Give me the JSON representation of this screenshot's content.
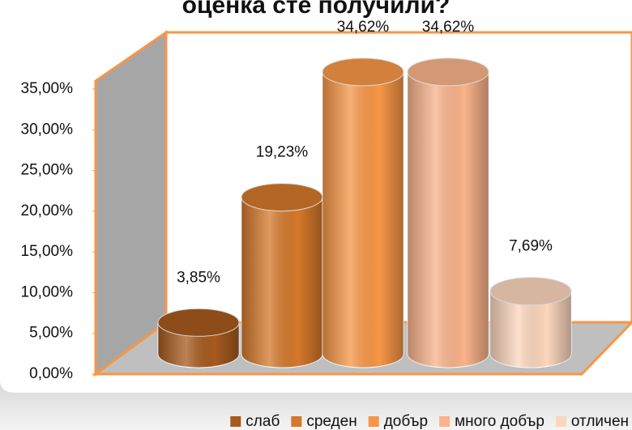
{
  "chart_data": {
    "type": "bar3d",
    "title": "оценка сте получили?",
    "categories": [
      "слаб",
      "среден",
      "добър",
      "много добър",
      "отличен"
    ],
    "values": [
      3.85,
      19.23,
      34.62,
      34.62,
      7.69
    ],
    "value_labels": [
      "3,85%",
      "19,23%",
      "34,62%",
      "34,62%",
      "7,69%"
    ],
    "colors": [
      "#a65a1e",
      "#d4782a",
      "#f79646",
      "#f9b38a",
      "#fcd6bd"
    ],
    "ylim": [
      0,
      35
    ],
    "yticks": [
      {
        "value": 0,
        "label": "0,00%"
      },
      {
        "value": 5,
        "label": "5,00%"
      },
      {
        "value": 10,
        "label": "10,00%"
      },
      {
        "value": 15,
        "label": "15,00%"
      },
      {
        "value": 20,
        "label": "20,00%"
      },
      {
        "value": 25,
        "label": "25,00%"
      },
      {
        "value": 30,
        "label": "30,00%"
      },
      {
        "value": 35,
        "label": "35,00%"
      }
    ],
    "legend": "bottom"
  }
}
